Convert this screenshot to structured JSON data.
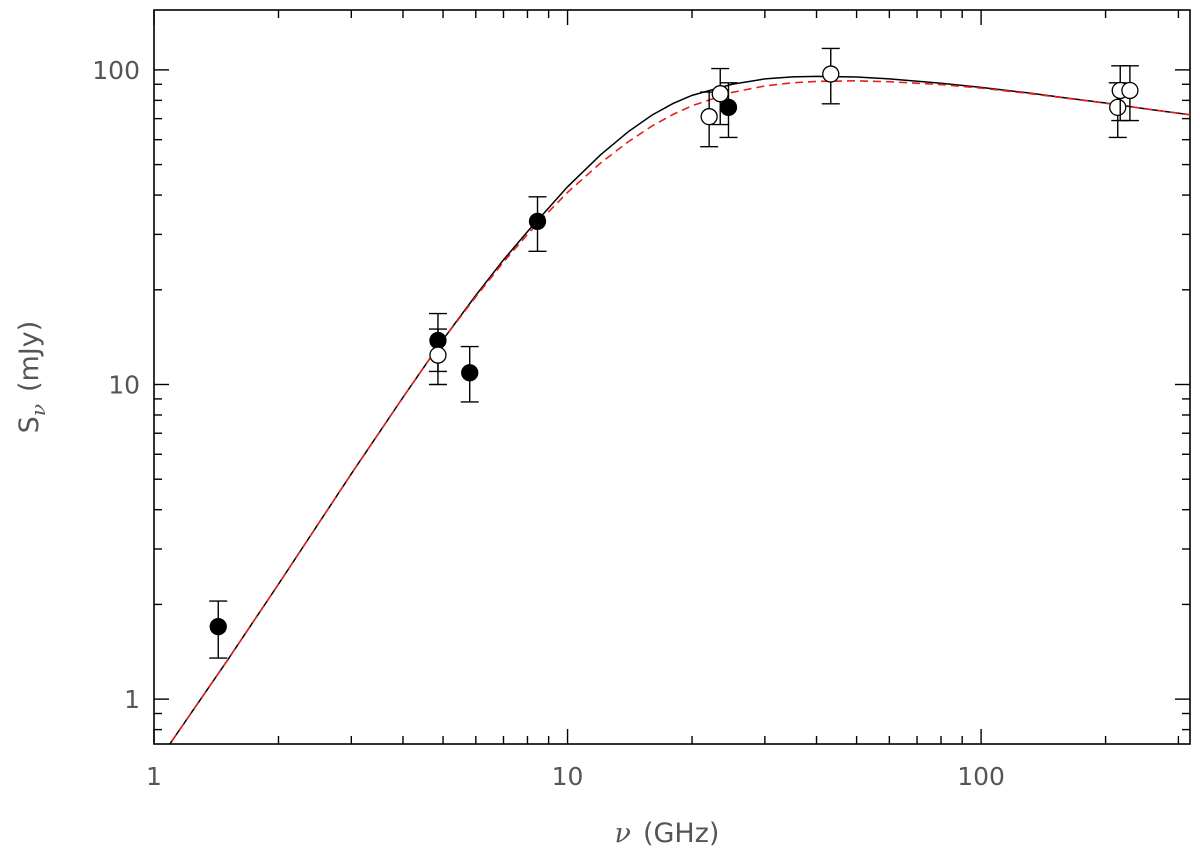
{
  "chart_data": {
    "type": "scatter",
    "xscale": "log",
    "yscale": "log",
    "xlim": [
      1,
      320
    ],
    "ylim": [
      0.72,
      155
    ],
    "xlabel": {
      "symbol": "ν",
      "unit": "(GHz)"
    },
    "ylabel": {
      "symbol": "S",
      "subscript": "ν",
      "unit": "(mJy)"
    },
    "x_tick_labels": [
      {
        "value": 1,
        "label": "1"
      },
      {
        "value": 10,
        "label": "10"
      },
      {
        "value": 100,
        "label": "100"
      }
    ],
    "y_tick_labels": [
      {
        "value": 1,
        "label": "1"
      },
      {
        "value": 10,
        "label": "10"
      },
      {
        "value": 100,
        "label": "100"
      }
    ],
    "series": [
      {
        "style": "filled-circle",
        "points": [
          {
            "x": 1.43,
            "y": 1.7,
            "ylo": 1.35,
            "yhi": 2.05
          },
          {
            "x": 4.86,
            "y": 13.8,
            "ylo": 11.0,
            "yhi": 16.8
          },
          {
            "x": 5.8,
            "y": 10.9,
            "ylo": 8.8,
            "yhi": 13.2
          },
          {
            "x": 8.46,
            "y": 33.0,
            "ylo": 26.5,
            "yhi": 39.5
          },
          {
            "x": 24.5,
            "y": 76.0,
            "ylo": 61.0,
            "yhi": 91.0
          }
        ]
      },
      {
        "style": "open-circle",
        "points": [
          {
            "x": 4.86,
            "y": 12.4,
            "ylo": 10.0,
            "yhi": 15.0
          },
          {
            "x": 22.0,
            "y": 71.0,
            "ylo": 57.0,
            "yhi": 85.0
          },
          {
            "x": 23.4,
            "y": 84.0,
            "ylo": 67.0,
            "yhi": 101.0
          },
          {
            "x": 43.3,
            "y": 97.0,
            "ylo": 78.0,
            "yhi": 117.0
          },
          {
            "x": 214,
            "y": 76.0,
            "ylo": 61.0,
            "yhi": 91.0
          },
          {
            "x": 217,
            "y": 86.0,
            "ylo": 69.0,
            "yhi": 103.0
          },
          {
            "x": 229,
            "y": 86.0,
            "ylo": 69.0,
            "yhi": 103.0
          }
        ]
      }
    ],
    "curves": [
      {
        "style": "solid",
        "color": "#000000",
        "points": [
          [
            1.06,
            0.68
          ],
          [
            1.5,
            1.32
          ],
          [
            2.0,
            2.32
          ],
          [
            3.0,
            5.2
          ],
          [
            4.0,
            9.1
          ],
          [
            5.0,
            13.9
          ],
          [
            6.0,
            19.2
          ],
          [
            7.0,
            24.9
          ],
          [
            8.0,
            30.6
          ],
          [
            9.0,
            36.4
          ],
          [
            10.0,
            42.5
          ],
          [
            12.0,
            53.6
          ],
          [
            14.0,
            63.5
          ],
          [
            16.0,
            71.8
          ],
          [
            18.0,
            78.2
          ],
          [
            20.0,
            83.0
          ],
          [
            25.0,
            90.0
          ],
          [
            30.0,
            93.6
          ],
          [
            35.0,
            95.0
          ],
          [
            40.0,
            95.4
          ],
          [
            50.0,
            94.9
          ],
          [
            60.0,
            93.6
          ],
          [
            80.0,
            90.7
          ],
          [
            100.0,
            88.0
          ],
          [
            130.0,
            84.5
          ],
          [
            160.0,
            81.5
          ],
          [
            200.0,
            78.5
          ],
          [
            250.0,
            75.2
          ],
          [
            320.0,
            72.0
          ]
        ]
      },
      {
        "style": "dashed",
        "color": "#e8201c",
        "points": [
          [
            1.06,
            0.68
          ],
          [
            1.5,
            1.32
          ],
          [
            2.0,
            2.32
          ],
          [
            3.0,
            5.2
          ],
          [
            4.0,
            9.1
          ],
          [
            5.0,
            13.9
          ],
          [
            6.0,
            19.0
          ],
          [
            7.0,
            24.5
          ],
          [
            8.0,
            30.0
          ],
          [
            9.0,
            35.4
          ],
          [
            10.0,
            40.8
          ],
          [
            12.0,
            50.5
          ],
          [
            14.0,
            59.0
          ],
          [
            16.0,
            66.3
          ],
          [
            18.0,
            72.2
          ],
          [
            20.0,
            76.9
          ],
          [
            25.0,
            84.8
          ],
          [
            30.0,
            88.9
          ],
          [
            35.0,
            91.0
          ],
          [
            40.0,
            91.9
          ],
          [
            50.0,
            92.3
          ],
          [
            60.0,
            91.7
          ],
          [
            80.0,
            89.8
          ],
          [
            100.0,
            87.5
          ],
          [
            130.0,
            84.2
          ],
          [
            160.0,
            81.3
          ],
          [
            200.0,
            78.4
          ],
          [
            250.0,
            75.2
          ],
          [
            320.0,
            72.0
          ]
        ]
      }
    ]
  }
}
